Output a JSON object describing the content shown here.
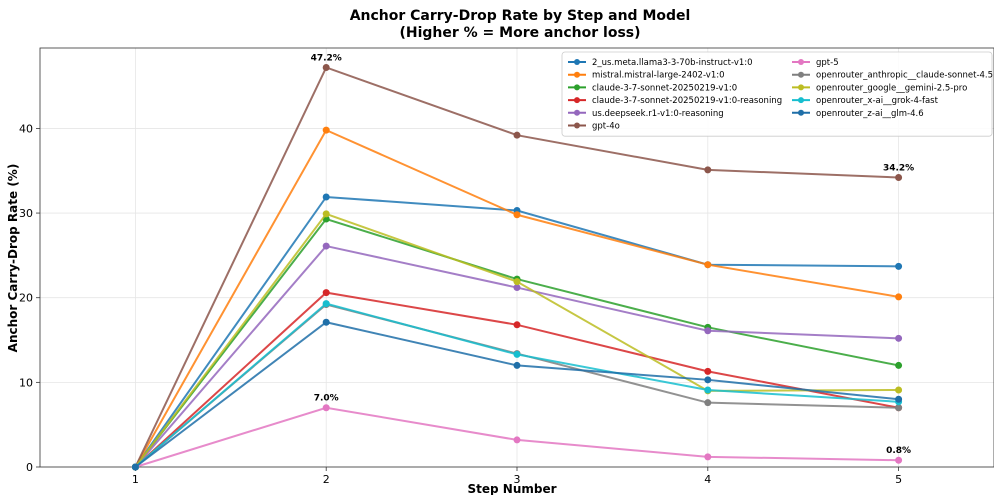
{
  "chart_data": {
    "type": "line",
    "title": "Anchor Carry-Drop Rate by Step and Model",
    "subtitle": "(Higher % = More anchor loss)",
    "xlabel": "Step Number",
    "ylabel": "Anchor Carry-Drop Rate (%)",
    "x": [
      1,
      2,
      3,
      4,
      5
    ],
    "xlim": [
      0.5,
      5.5
    ],
    "ylim": [
      0,
      49.5
    ],
    "yticks": [
      0,
      10,
      20,
      30,
      40
    ],
    "grid": true,
    "legend_position": "top-right",
    "legend_columns": 2,
    "series": [
      {
        "name": "2_us.meta.llama3-3-70b-instruct-v1:0",
        "color": "#1f77b4",
        "values": [
          0,
          31.9,
          30.3,
          23.9,
          23.7
        ]
      },
      {
        "name": "mistral.mistral-large-2402-v1:0",
        "color": "#ff7f0e",
        "values": [
          0,
          39.8,
          29.8,
          23.9,
          20.1
        ]
      },
      {
        "name": "claude-3-7-sonnet-20250219-v1:0",
        "color": "#2ca02c",
        "values": [
          0,
          29.3,
          22.2,
          16.5,
          12.0
        ]
      },
      {
        "name": "claude-3-7-sonnet-20250219-v1:0-reasoning",
        "color": "#d62728",
        "values": [
          0,
          20.6,
          16.8,
          11.3,
          7.0
        ]
      },
      {
        "name": "us.deepseek.r1-v1:0-reasoning",
        "color": "#9467bd",
        "values": [
          0,
          26.1,
          21.2,
          16.1,
          15.2
        ]
      },
      {
        "name": "gpt-4o",
        "color": "#8c564b",
        "values": [
          0,
          47.2,
          39.2,
          35.1,
          34.2
        ]
      },
      {
        "name": "gpt-5",
        "color": "#e377c2",
        "values": [
          0,
          7.0,
          3.2,
          1.2,
          0.8
        ]
      },
      {
        "name": "openrouter_anthropic__claude-sonnet-4.5",
        "color": "#7f7f7f",
        "values": [
          0,
          19.2,
          13.4,
          7.6,
          7.0
        ]
      },
      {
        "name": "openrouter_google__gemini-2.5-pro",
        "color": "#bcbd22",
        "values": [
          0,
          29.9,
          21.9,
          9.0,
          9.1
        ]
      },
      {
        "name": "openrouter_x-ai__grok-4-fast",
        "color": "#17becf",
        "values": [
          0,
          19.3,
          13.3,
          9.1,
          7.7
        ]
      },
      {
        "name": "openrouter_z-ai__glm-4.6",
        "color": "#1f6fa8",
        "values": [
          0,
          17.1,
          12.0,
          10.3,
          8.0
        ]
      }
    ],
    "annotations": [
      {
        "text": "47.2%",
        "x": 2,
        "y": 47.2
      },
      {
        "text": "34.2%",
        "x": 5,
        "y": 34.2
      },
      {
        "text": "7.0%",
        "x": 2,
        "y": 7.0
      },
      {
        "text": "0.8%",
        "x": 5,
        "y": 0.8
      }
    ]
  }
}
